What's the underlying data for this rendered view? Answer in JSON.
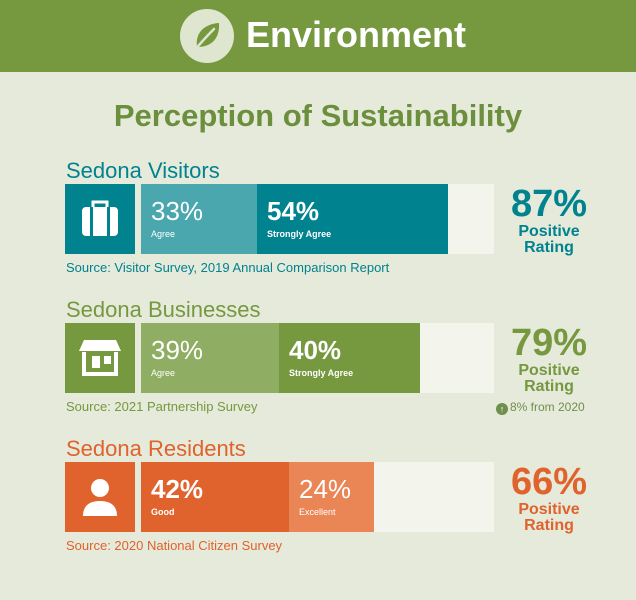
{
  "header": {
    "title": "Environment",
    "icon": "leaf-icon",
    "color": "#76983f"
  },
  "main_title": "Perception of Sustainability",
  "chart_data": [
    {
      "type": "bar",
      "title": "Sedona Visitors",
      "icon": "suitcase-icon",
      "color_main": "#00828f",
      "color_light": "#4aa7ae",
      "series": [
        {
          "name": "Agree",
          "value": 33,
          "pct_text": "33%",
          "bold": false
        },
        {
          "name": "Strongly Agree",
          "value": 54,
          "pct_text": "54%",
          "bold": true
        }
      ],
      "rating": {
        "value": 87,
        "pct_text": "87%",
        "label_line1": "Positive",
        "label_line2": "Rating"
      },
      "source": "Source: Visitor Survey, 2019 Annual Comparison Report",
      "change": ""
    },
    {
      "type": "bar",
      "title": "Sedona Businesses",
      "icon": "storefront-icon",
      "color_main": "#76983f",
      "color_light": "#8fae64",
      "series": [
        {
          "name": "Agree",
          "value": 39,
          "pct_text": "39%",
          "bold": false
        },
        {
          "name": "Strongly Agree",
          "value": 40,
          "pct_text": "40%",
          "bold": true
        }
      ],
      "rating": {
        "value": 79,
        "pct_text": "79%",
        "label_line1": "Positive",
        "label_line2": "Rating"
      },
      "source": "Source: 2021 Partnership Survey",
      "change": "8% from 2020"
    },
    {
      "type": "bar",
      "title": "Sedona Residents",
      "icon": "person-icon",
      "color_main": "#e0622c",
      "color_light": "#ea8555",
      "series": [
        {
          "name": "Good",
          "value": 42,
          "pct_text": "42%",
          "bold": true
        },
        {
          "name": "Excellent",
          "value": 24,
          "pct_text": "24%",
          "bold": false
        }
      ],
      "rating": {
        "value": 66,
        "pct_text": "66%",
        "label_line1": "Positive",
        "label_line2": "Rating"
      },
      "source": "Source: 2020 National Citizen Survey",
      "change": ""
    }
  ]
}
